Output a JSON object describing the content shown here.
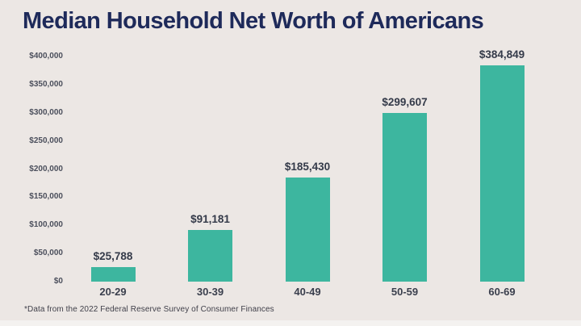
{
  "page": {
    "background_color": "#ece7e4",
    "accent_color": "#3db69f"
  },
  "chart_data": {
    "type": "bar",
    "title": "Median Household Net Worth of Americans",
    "footnote": "*Data from the 2022 Federal Reserve Survey of Consumer Finances",
    "categories": [
      "20-29",
      "30-39",
      "40-49",
      "50-59",
      "60-69"
    ],
    "values": [
      25788,
      91181,
      185430,
      299607,
      384849
    ],
    "value_labels": [
      "$25,788",
      "$91,181",
      "$185,430",
      "$299,607",
      "$384,849"
    ],
    "xlabel": "",
    "ylabel": "",
    "ylim": [
      0,
      400000
    ],
    "yticks": [
      {
        "label": "$0",
        "value": 0
      },
      {
        "label": "$50,000",
        "value": 50000
      },
      {
        "label": "$100,000",
        "value": 100000
      },
      {
        "label": "$150,000",
        "value": 150000
      },
      {
        "label": "$200,000",
        "value": 200000
      },
      {
        "label": "$250,000",
        "value": 250000
      },
      {
        "label": "$300,000",
        "value": 300000
      },
      {
        "label": "$350,000",
        "value": 350000
      },
      {
        "label": "$400,000",
        "value": 400000
      }
    ],
    "grid": false,
    "legend": false,
    "bar_color": "#3db69f",
    "title_color": "#1e2a5a",
    "label_color": "#343a49"
  }
}
